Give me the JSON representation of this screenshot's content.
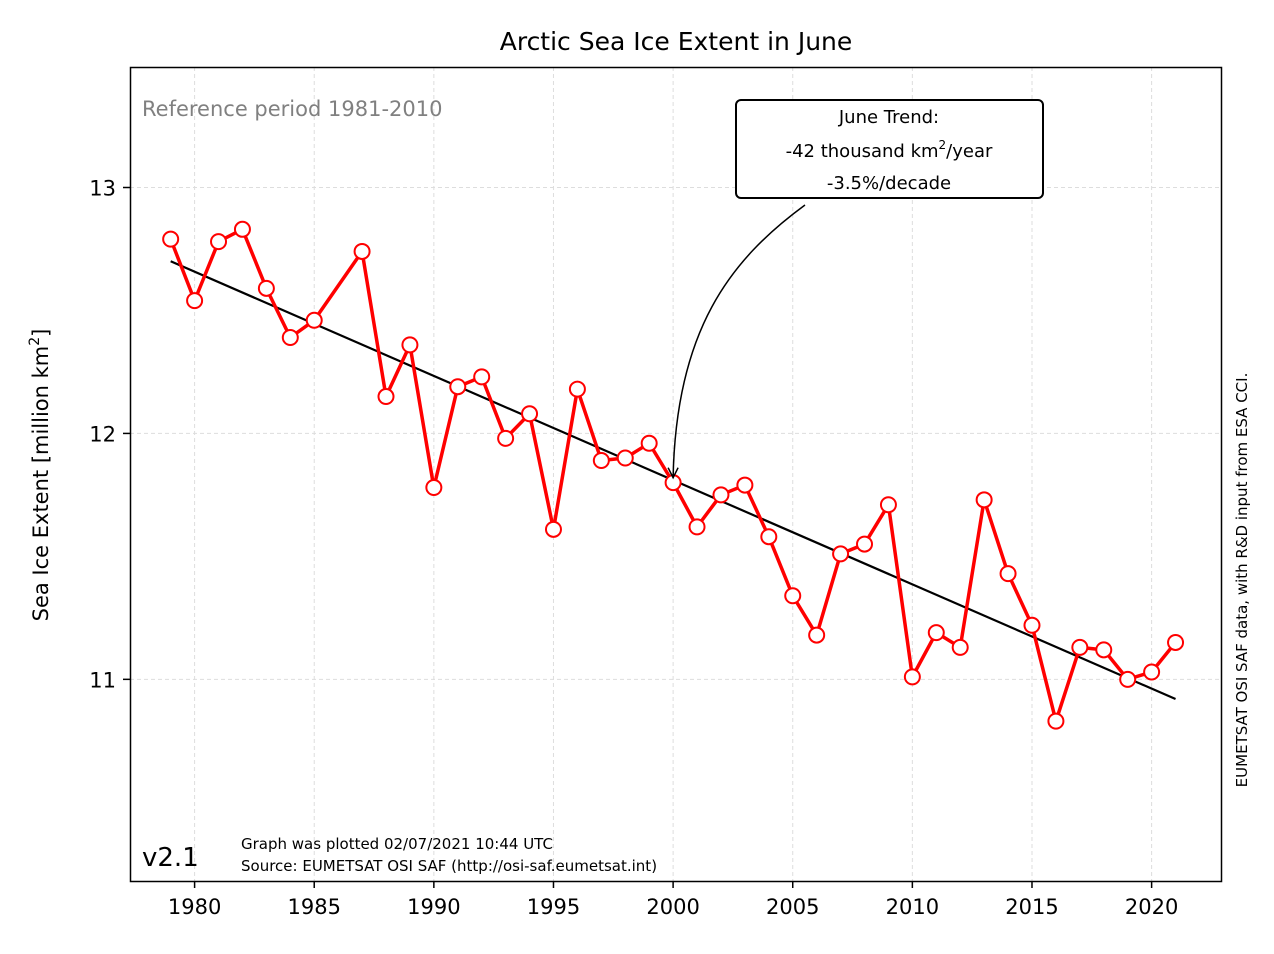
{
  "chart_data": {
    "type": "line",
    "title": "Arctic Sea Ice Extent in June",
    "ylabel_main": "Sea Ice Extent [million km",
    "ylabel_sup": "2",
    "ylabel_end": "]",
    "xlim": [
      1977.3,
      2022.9
    ],
    "ylim": [
      10.18,
      13.49
    ],
    "xticks": [
      1980,
      1985,
      1990,
      1995,
      2000,
      2005,
      2010,
      2015,
      2020
    ],
    "yticks": [
      11,
      12,
      13
    ],
    "grid": true,
    "reference_text": "Reference period 1981-2010",
    "series": [
      {
        "x": [
          1979,
          1980,
          1981,
          1982,
          1983,
          1984,
          1985,
          1987,
          1988,
          1989,
          1990,
          1991,
          1992,
          1993,
          1994,
          1995,
          1996,
          1997,
          1998,
          1999,
          2000,
          2001,
          2002,
          2003,
          2004,
          2005,
          2006,
          2007,
          2008,
          2009,
          2010,
          2011,
          2012,
          2013,
          2014,
          2015,
          2016,
          2017,
          2018,
          2019,
          2020,
          2021
        ],
        "values": [
          12.79,
          12.54,
          12.78,
          12.83,
          12.59,
          12.39,
          12.46,
          12.74,
          12.15,
          12.36,
          11.78,
          12.19,
          12.23,
          11.98,
          12.08,
          11.61,
          12.18,
          11.89,
          11.9,
          11.96,
          11.8,
          11.62,
          11.75,
          11.79,
          11.58,
          11.34,
          11.18,
          11.51,
          11.55,
          11.71,
          11.01,
          11.19,
          11.13,
          11.73,
          11.43,
          11.22,
          10.83,
          11.13,
          11.12,
          11.0,
          11.03,
          11.15
        ],
        "color": "#ff0000",
        "marker_fill": "#ffffff"
      }
    ],
    "trend": {
      "x": [
        1979,
        2021
      ],
      "y": [
        12.7,
        10.92
      ],
      "color": "#000000"
    },
    "annotation": {
      "line1": "June Trend:",
      "line2_pre": "-42 thousand km",
      "line2_sup": "2",
      "line2_post": "/year",
      "line3": "-3.5%/decade",
      "target_x": 2000,
      "target_y": 11.82
    },
    "version": "v2.1",
    "footer_line1": "Graph was plotted 02/07/2021 10:44 UTC",
    "footer_line2": "Source: EUMETSAT OSI SAF (http://osi-saf.eumetsat.int)",
    "side_note": "EUMETSAT OSI SAF data, with R&D input from ESA CCI."
  }
}
